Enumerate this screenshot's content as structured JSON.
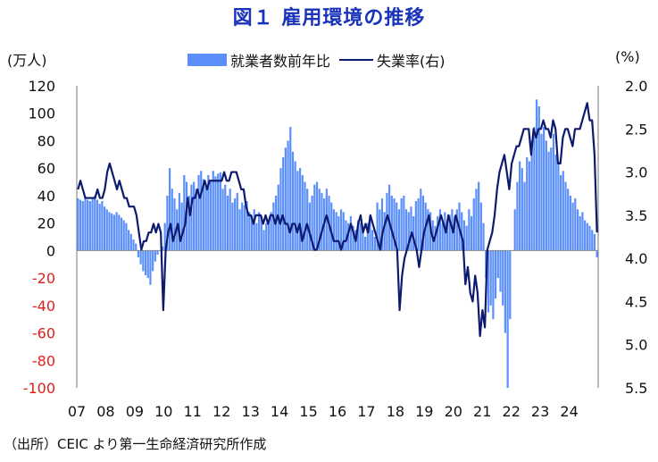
{
  "title": "図１ 雇用環境の推移",
  "source": "（出所）CEIC より第一生命経済研究所作成",
  "legend": {
    "bar_label": "就業者数前年比",
    "line_label": "失業率(右)"
  },
  "chart_data": {
    "type": "bar",
    "left_unit": "(万人)",
    "right_unit": "(%)",
    "left_ylim": [
      -100,
      120
    ],
    "left_ticks": [
      120,
      100,
      80,
      60,
      40,
      20,
      0,
      -20,
      -40,
      -60,
      -80,
      -100
    ],
    "right_ylim": [
      2.0,
      5.5
    ],
    "right_ticks": [
      "2.0",
      "2.5",
      "3.0",
      "3.5",
      "4.0",
      "4.5",
      "5.0",
      "5.5"
    ],
    "right_axis_inverted": true,
    "x_labels": [
      "07",
      "08",
      "09",
      "10",
      "11",
      "12",
      "13",
      "14",
      "15",
      "16",
      "17",
      "18",
      "19",
      "20",
      "21",
      "22",
      "23",
      "24"
    ],
    "colors": {
      "bars": "#5b8ff9",
      "line": "#0d1a6e",
      "negative_ticks": "#e0201b"
    },
    "series": [
      {
        "name": "就業者数前年比",
        "type": "bar",
        "axis": "left",
        "values": [
          38,
          37,
          36,
          38,
          37,
          36,
          38,
          40,
          37,
          34,
          36,
          32,
          30,
          28,
          27,
          26,
          28,
          26,
          24,
          22,
          20,
          15,
          12,
          8,
          5,
          -5,
          -10,
          -15,
          -18,
          -20,
          -25,
          -15,
          -8,
          -3,
          0,
          3,
          20,
          40,
          60,
          45,
          38,
          30,
          42,
          35,
          55,
          50,
          40,
          48,
          50,
          45,
          55,
          58,
          52,
          48,
          55,
          50,
          58,
          54,
          56,
          57,
          45,
          48,
          40,
          45,
          35,
          38,
          42,
          30,
          35,
          33,
          36,
          28,
          25,
          30,
          20,
          28,
          25,
          15,
          20,
          22,
          28,
          35,
          40,
          48,
          60,
          68,
          75,
          80,
          90,
          72,
          65,
          58,
          60,
          55,
          50,
          45,
          35,
          40,
          48,
          50,
          45,
          42,
          38,
          45,
          40,
          35,
          30,
          28,
          25,
          30,
          28,
          22,
          20,
          25,
          18,
          15,
          22,
          20,
          15,
          10,
          20,
          25,
          15,
          10,
          35,
          30,
          38,
          28,
          42,
          48,
          40,
          38,
          35,
          30,
          38,
          40,
          30,
          28,
          32,
          25,
          36,
          38,
          45,
          40,
          35,
          30,
          28,
          22,
          18,
          25,
          30,
          20,
          28,
          22,
          26,
          30,
          25,
          30,
          35,
          28,
          22,
          18,
          30,
          25,
          38,
          45,
          50,
          35,
          20,
          -20,
          -45,
          -40,
          -50,
          -35,
          -20,
          -30,
          -40,
          -60,
          -100,
          -50,
          0,
          30,
          50,
          65,
          60,
          50,
          68,
          65,
          80,
          90,
          110,
          105,
          85,
          90,
          80,
          72,
          75,
          85,
          70,
          65,
          55,
          58,
          50,
          45,
          40,
          35,
          38,
          30,
          25,
          28,
          22,
          20,
          18,
          15,
          12,
          -5
        ]
      },
      {
        "name": "失業率(右)",
        "type": "line",
        "axis": "right",
        "values": [
          3.2,
          3.1,
          3.2,
          3.3,
          3.3,
          3.3,
          3.3,
          3.3,
          3.2,
          3.3,
          3.3,
          3.2,
          3.0,
          2.9,
          3.0,
          3.1,
          3.2,
          3.1,
          3.2,
          3.3,
          3.3,
          3.4,
          3.4,
          3.4,
          3.5,
          3.7,
          3.9,
          3.8,
          3.8,
          3.7,
          3.7,
          3.6,
          3.7,
          3.6,
          3.7,
          4.6,
          3.9,
          3.7,
          3.6,
          3.8,
          3.7,
          3.6,
          3.8,
          3.7,
          3.6,
          3.3,
          3.5,
          3.3,
          3.3,
          3.2,
          3.3,
          3.2,
          3.1,
          3.2,
          3.1,
          3.1,
          3.1,
          3.1,
          3.1,
          3.1,
          3.0,
          3.1,
          3.1,
          3.0,
          3.0,
          3.0,
          3.1,
          3.2,
          3.2,
          3.4,
          3.5,
          3.5,
          3.6,
          3.5,
          3.5,
          3.5,
          3.6,
          3.5,
          3.6,
          3.5,
          3.5,
          3.6,
          3.5,
          3.6,
          3.5,
          3.6,
          3.6,
          3.7,
          3.6,
          3.6,
          3.7,
          3.6,
          3.8,
          3.7,
          3.6,
          3.7,
          3.8,
          3.9,
          3.9,
          3.8,
          3.7,
          3.6,
          3.5,
          3.6,
          3.7,
          3.8,
          3.8,
          3.8,
          3.9,
          3.8,
          3.8,
          3.7,
          3.6,
          3.7,
          3.8,
          3.6,
          3.5,
          3.7,
          3.6,
          3.7,
          3.5,
          3.6,
          3.7,
          3.8,
          3.9,
          3.7,
          3.6,
          3.5,
          3.6,
          3.7,
          3.8,
          3.9,
          4.6,
          4.2,
          4.0,
          3.9,
          3.8,
          3.7,
          3.8,
          3.9,
          4.1,
          3.9,
          3.7,
          3.6,
          3.5,
          3.7,
          3.8,
          3.7,
          3.6,
          3.5,
          3.6,
          3.7,
          3.5,
          3.6,
          3.7,
          3.5,
          3.6,
          3.7,
          3.8,
          4.3,
          4.1,
          4.4,
          4.5,
          4.2,
          4.4,
          4.9,
          4.6,
          4.8,
          3.9,
          3.8,
          3.7,
          3.5,
          3.2,
          3.0,
          2.9,
          2.8,
          3.0,
          3.2,
          2.9,
          2.8,
          2.7,
          2.7,
          2.6,
          2.5,
          2.5,
          2.5,
          2.8,
          2.5,
          2.6,
          2.5,
          2.5,
          2.4,
          2.5,
          2.5,
          2.6,
          2.4,
          2.5,
          2.9,
          2.9,
          2.6,
          2.5,
          2.5,
          2.6,
          2.7,
          2.5,
          2.5,
          2.5,
          2.4,
          2.3,
          2.2,
          2.4,
          2.4,
          2.8,
          3.7
        ]
      }
    ]
  }
}
